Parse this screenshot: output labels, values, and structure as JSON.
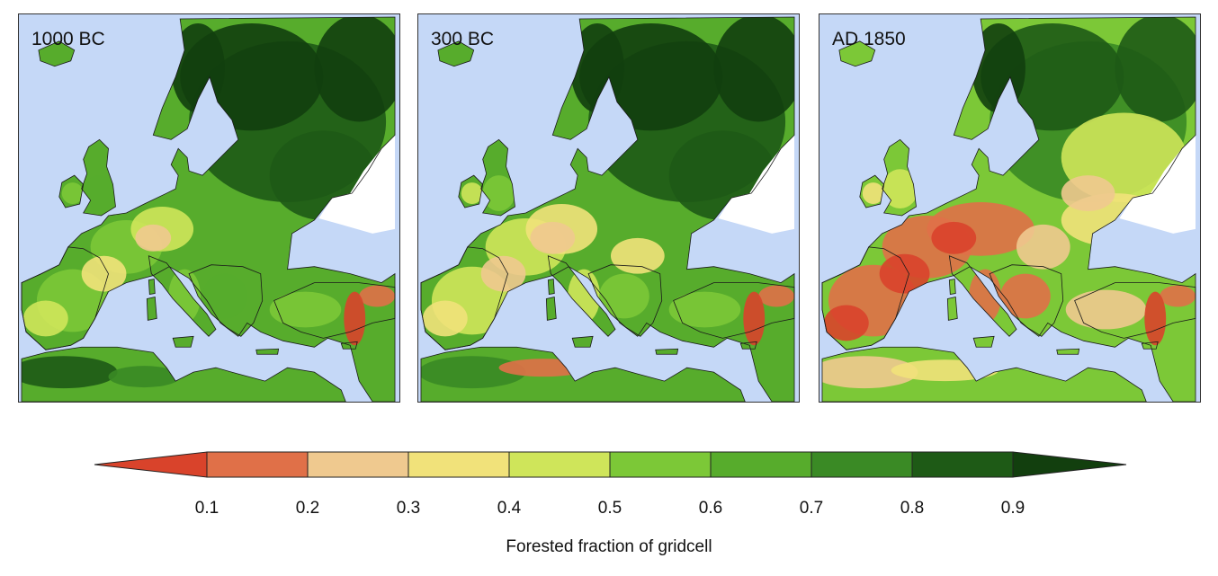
{
  "panels": [
    {
      "label": "1000 BC",
      "period": 0
    },
    {
      "label": "300 BC",
      "period": 1
    },
    {
      "label": "AD 1850",
      "period": 2
    }
  ],
  "colorbar": {
    "title": "Forested fraction of gridcell",
    "ticks": [
      "0.1",
      "0.2",
      "0.3",
      "0.4",
      "0.5",
      "0.6",
      "0.7",
      "0.8",
      "0.9"
    ],
    "colors": [
      "#d9432b",
      "#e07048",
      "#efc98f",
      "#f1e27a",
      "#cfe55a",
      "#7cc837",
      "#57ac2c",
      "#3a8a25",
      "#1e5a16",
      "#123f0e"
    ],
    "extend": "both"
  },
  "map_colors": {
    "sea": "#c5d8f7",
    "nodata": "#ffffff"
  }
}
